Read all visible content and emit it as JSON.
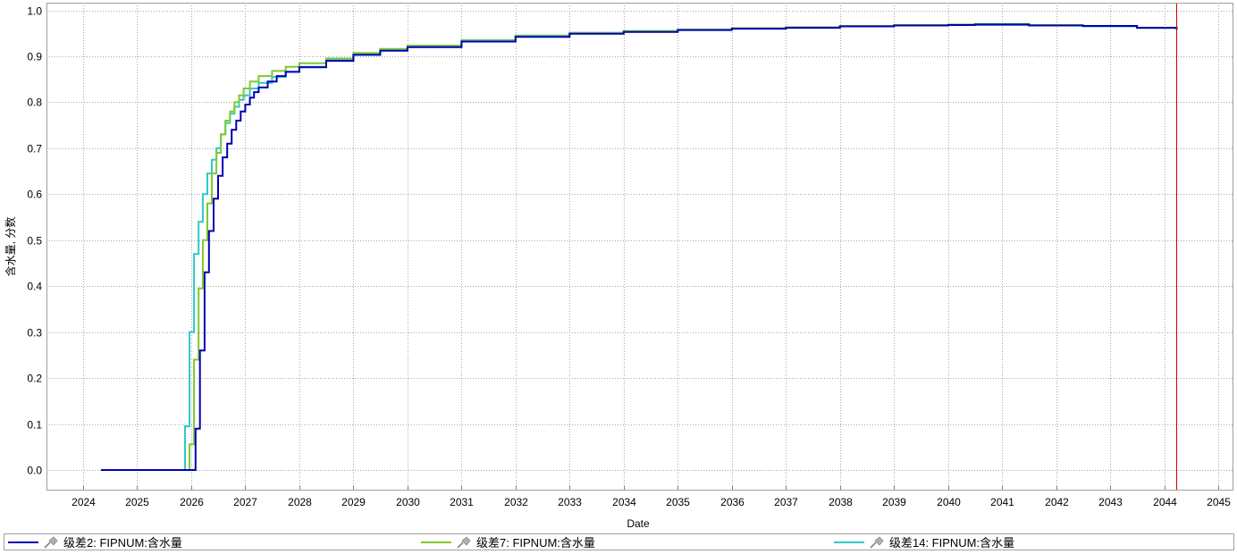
{
  "chart_data": {
    "type": "line",
    "step": true,
    "title": "",
    "xlabel": "Date",
    "ylabel": "含水量, 分数",
    "xlim": [
      "2023-04-01",
      "2045-05-01"
    ],
    "ylim": [
      -0.045,
      1.015
    ],
    "x_ticks": [
      "2024",
      "2025",
      "2026",
      "2027",
      "2028",
      "2029",
      "2030",
      "2031",
      "2032",
      "2033",
      "2034",
      "2035",
      "2036",
      "2037",
      "2038",
      "2039",
      "2040",
      "2041",
      "2042",
      "2043",
      "2044",
      "2045"
    ],
    "y_ticks": [
      "0.0",
      "0.1",
      "0.2",
      "0.3",
      "0.4",
      "0.5",
      "0.6",
      "0.7",
      "0.8",
      "0.9",
      "1.0"
    ],
    "grid": true,
    "legend_placement": "bottom",
    "marker_line": {
      "date": "2044-03-25",
      "color": "#d00000"
    },
    "series": [
      {
        "name": "级差2: FIPNUM:含水量",
        "color": "#0000b4",
        "points": [
          [
            "2024-05-01",
            0
          ],
          [
            "2026-01-30",
            0.09
          ],
          [
            "2026-03-01",
            0.26
          ],
          [
            "2026-04-01",
            0.43
          ],
          [
            "2026-05-01",
            0.52
          ],
          [
            "2026-06-01",
            0.59
          ],
          [
            "2026-07-01",
            0.64
          ],
          [
            "2026-08-01",
            0.68
          ],
          [
            "2026-09-01",
            0.71
          ],
          [
            "2026-10-01",
            0.74
          ],
          [
            "2026-11-01",
            0.76
          ],
          [
            "2026-12-01",
            0.78
          ],
          [
            "2027-01-01",
            0.795
          ],
          [
            "2027-02-01",
            0.81
          ],
          [
            "2027-03-01",
            0.822
          ],
          [
            "2027-04-01",
            0.832
          ],
          [
            "2027-06-01",
            0.845
          ],
          [
            "2027-08-01",
            0.857
          ],
          [
            "2027-10-01",
            0.866
          ],
          [
            "2028-01-01",
            0.876
          ],
          [
            "2028-07-01",
            0.89
          ],
          [
            "2029-01-01",
            0.903
          ],
          [
            "2029-07-01",
            0.912
          ],
          [
            "2030-01-01",
            0.92
          ],
          [
            "2031-01-01",
            0.932
          ],
          [
            "2032-01-01",
            0.942
          ],
          [
            "2033-01-01",
            0.949
          ],
          [
            "2034-01-01",
            0.953
          ],
          [
            "2035-01-01",
            0.957
          ],
          [
            "2036-01-01",
            0.96
          ],
          [
            "2037-01-01",
            0.962
          ],
          [
            "2038-01-01",
            0.965
          ],
          [
            "2039-01-01",
            0.967
          ],
          [
            "2040-01-01",
            0.968
          ],
          [
            "2040-07-01",
            0.969
          ],
          [
            "2041-07-01",
            0.967
          ],
          [
            "2042-07-01",
            0.966
          ],
          [
            "2043-07-01",
            0.962
          ],
          [
            "2044-03-25",
            0.958
          ]
        ]
      },
      {
        "name": "级差7: FIPNUM:含水量",
        "color": "#80c830",
        "points": [
          [
            "2024-05-01",
            0
          ],
          [
            "2025-12-20",
            0.056
          ],
          [
            "2026-01-20",
            0.24
          ],
          [
            "2026-02-20",
            0.395
          ],
          [
            "2026-03-20",
            0.5
          ],
          [
            "2026-04-20",
            0.58
          ],
          [
            "2026-05-20",
            0.645
          ],
          [
            "2026-06-20",
            0.69
          ],
          [
            "2026-07-20",
            0.73
          ],
          [
            "2026-08-20",
            0.76
          ],
          [
            "2026-09-20",
            0.78
          ],
          [
            "2026-10-20",
            0.8
          ],
          [
            "2026-11-20",
            0.815
          ],
          [
            "2026-12-20",
            0.83
          ],
          [
            "2027-02-01",
            0.845
          ],
          [
            "2027-04-01",
            0.857
          ],
          [
            "2027-07-01",
            0.868
          ],
          [
            "2027-10-01",
            0.877
          ],
          [
            "2028-01-01",
            0.885
          ],
          [
            "2028-07-01",
            0.895
          ],
          [
            "2029-01-01",
            0.907
          ],
          [
            "2029-07-01",
            0.916
          ],
          [
            "2030-01-01",
            0.923
          ],
          [
            "2031-01-01",
            0.934
          ],
          [
            "2032-01-01",
            0.944
          ],
          [
            "2033-01-01",
            0.951
          ],
          [
            "2034-01-01",
            0.955
          ],
          [
            "2035-01-01",
            0.958
          ],
          [
            "2036-01-01",
            0.961
          ],
          [
            "2037-01-01",
            0.963
          ],
          [
            "2038-01-01",
            0.966
          ],
          [
            "2039-01-01",
            0.968
          ],
          [
            "2040-01-01",
            0.969
          ],
          [
            "2040-07-01",
            0.97
          ],
          [
            "2041-07-01",
            0.968
          ],
          [
            "2042-07-01",
            0.966
          ],
          [
            "2043-07-01",
            0.962
          ],
          [
            "2044-03-25",
            0.959
          ]
        ]
      },
      {
        "name": "级差14: FIPNUM:含水量",
        "color": "#30c8c8",
        "points": [
          [
            "2024-05-01",
            0
          ],
          [
            "2025-11-20",
            0.095
          ],
          [
            "2025-12-20",
            0.3
          ],
          [
            "2026-01-20",
            0.47
          ],
          [
            "2026-02-20",
            0.54
          ],
          [
            "2026-03-20",
            0.6
          ],
          [
            "2026-04-20",
            0.645
          ],
          [
            "2026-05-20",
            0.675
          ],
          [
            "2026-06-20",
            0.7
          ],
          [
            "2026-07-20",
            0.73
          ],
          [
            "2026-08-20",
            0.755
          ],
          [
            "2026-09-20",
            0.775
          ],
          [
            "2026-10-20",
            0.79
          ],
          [
            "2026-11-20",
            0.805
          ],
          [
            "2026-12-20",
            0.815
          ],
          [
            "2027-02-01",
            0.83
          ],
          [
            "2027-04-01",
            0.842
          ],
          [
            "2027-07-01",
            0.855
          ],
          [
            "2027-10-01",
            0.866
          ],
          [
            "2028-01-01",
            0.877
          ],
          [
            "2028-07-01",
            0.892
          ],
          [
            "2029-01-01",
            0.906
          ],
          [
            "2029-07-01",
            0.915
          ],
          [
            "2030-01-01",
            0.923
          ],
          [
            "2031-01-01",
            0.935
          ],
          [
            "2032-01-01",
            0.945
          ],
          [
            "2033-01-01",
            0.951
          ],
          [
            "2034-01-01",
            0.955
          ],
          [
            "2035-01-01",
            0.958
          ],
          [
            "2036-01-01",
            0.961
          ],
          [
            "2037-01-01",
            0.963
          ],
          [
            "2038-01-01",
            0.965
          ],
          [
            "2039-01-01",
            0.967
          ],
          [
            "2040-01-01",
            0.968
          ],
          [
            "2040-07-01",
            0.968
          ],
          [
            "2041-07-01",
            0.967
          ],
          [
            "2042-07-01",
            0.965
          ],
          [
            "2043-07-01",
            0.962
          ],
          [
            "2044-03-25",
            0.959
          ]
        ]
      }
    ]
  },
  "legend_icon": "pin-icon"
}
